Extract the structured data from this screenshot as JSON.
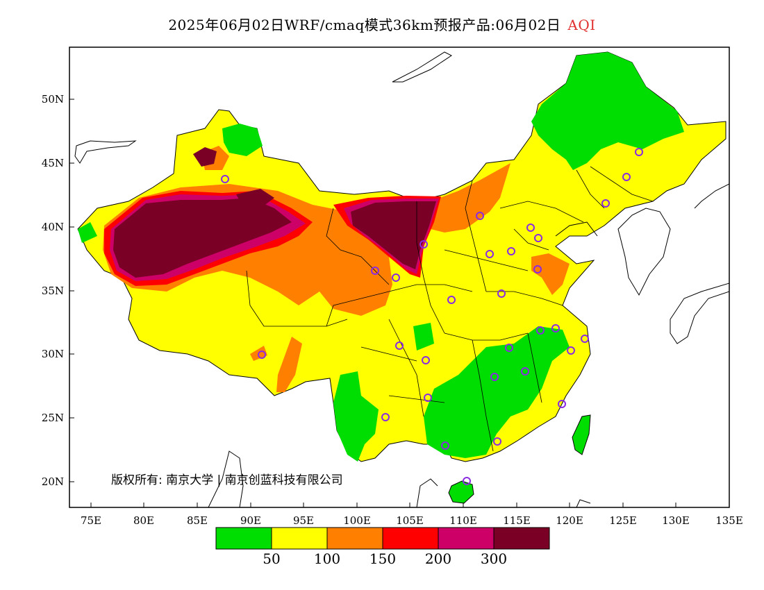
{
  "title": {
    "text": "2025年06月02日WRF/cmaq模式36km预报产品:06月02日",
    "pollutant": "AQI"
  },
  "map": {
    "lon_ticks": [
      "75E",
      "80E",
      "85E",
      "90E",
      "95E",
      "100E",
      "105E",
      "110E",
      "115E",
      "120E",
      "125E",
      "130E",
      "135E"
    ],
    "lat_ticks": [
      "20N",
      "25N",
      "30N",
      "35N",
      "40N",
      "45N",
      "50N"
    ],
    "copyright": "版权所有: 南京大学 | 南京创蓝科技有限公司"
  },
  "legend": {
    "colors": [
      "#00dd00",
      "#ffff00",
      "#ff8000",
      "#ff0000",
      "#cc0066",
      "#7a0026"
    ],
    "labels": [
      "50",
      "100",
      "150",
      "200",
      "300"
    ]
  },
  "colors": {
    "good": "#00dd00",
    "moderate": "#ffff00",
    "sensitive": "#ff8000",
    "unhealthy": "#ff0000",
    "very_unhealthy": "#cc0066",
    "hazardous": "#7a0026",
    "station_marker": "#8a2be2"
  }
}
